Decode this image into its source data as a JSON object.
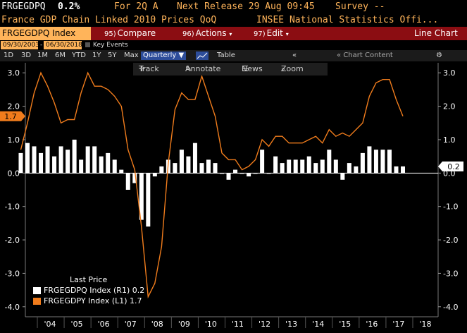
{
  "header": {
    "ticker": "FRGEGDPQ",
    "last_value": "0.2%",
    "for_label": "For 2Q A",
    "next_release": "Next Release 29 Aug 09:45",
    "survey": "Survey --",
    "description": "France GDP Chain Linked 2010 Prices QoQ",
    "source": "INSEE National Statistics Offi..."
  },
  "menu": {
    "ticker_box": "FRGEGDPQ Index",
    "compare": {
      "num": "95)",
      "label": "Compare"
    },
    "actions": {
      "num": "96)",
      "label": "Actions"
    },
    "edit": {
      "num": "97)",
      "label": "Edit"
    },
    "chart_type": "Line Chart"
  },
  "dates": {
    "start": "09/30/2003",
    "end": "06/30/2018",
    "key_events": "Key Events"
  },
  "periods": [
    "1D",
    "3D",
    "1M",
    "6M",
    "YTD",
    "1Y",
    "5Y",
    "Max"
  ],
  "frequency": "Quarterly",
  "table_label": "Table",
  "chart_content": "Chart Content",
  "tools": {
    "track": "Track",
    "annotate": "Annotate",
    "news": "News",
    "zoom": "Zoom"
  },
  "legend": {
    "title": "Last Price",
    "items": [
      {
        "label": "FRGEGDPQ Index  (R1) 0.2",
        "color": "#ffffff"
      },
      {
        "label": "FRGEGDPY Index  (L1) 1.7",
        "color": "#f07c1c"
      }
    ]
  },
  "colors": {
    "accent": "#ffb45a",
    "menubar": "#8b0d12",
    "line": "#f07c1c",
    "bar": "#ffffff"
  },
  "chart_data": {
    "type": "bar",
    "x_tick_labels": [
      "'04",
      "'05",
      "'06",
      "'07",
      "'08",
      "'09",
      "'10",
      "'11",
      "'12",
      "'13",
      "'14",
      "'15",
      "'16",
      "'17",
      "'18"
    ],
    "x_start_year": 2003.75,
    "left_axis": {
      "ticks": [
        3.0,
        2.0,
        1.0,
        0.0,
        -1.0,
        -2.0,
        -3.0,
        -4.0
      ],
      "last_label": "1.7"
    },
    "right_axis": {
      "ticks": [
        3.0,
        2.0,
        1.0,
        0.0,
        -1.0,
        -2.0,
        -3.0,
        -4.0
      ],
      "last_label": "0.2"
    },
    "ylim": [
      -4.3,
      3.3
    ],
    "series": [
      {
        "name": "FRGEGDPQ Index",
        "type": "bar",
        "axis": "R1",
        "values": [
          0.6,
          0.9,
          0.8,
          0.6,
          0.8,
          0.5,
          0.8,
          0.7,
          1.0,
          0.4,
          0.8,
          0.8,
          0.5,
          0.6,
          0.4,
          0.1,
          -0.5,
          -0.3,
          -1.4,
          -1.6,
          -0.1,
          0.2,
          0.4,
          0.3,
          0.7,
          0.5,
          0.9,
          0.3,
          0.4,
          0.3,
          0.0,
          -0.2,
          0.1,
          0.0,
          -0.1,
          0.0,
          0.7,
          0.0,
          0.5,
          0.3,
          0.4,
          0.4,
          0.4,
          0.5,
          0.3,
          0.4,
          0.7,
          0.4,
          -0.2,
          0.3,
          0.2,
          0.6,
          0.8,
          0.7,
          0.7,
          0.7,
          0.2,
          0.2
        ]
      },
      {
        "name": "FRGEGDPY Index",
        "type": "line",
        "axis": "L1",
        "values": [
          0.7,
          1.5,
          2.4,
          3.0,
          2.6,
          2.1,
          1.5,
          1.6,
          1.6,
          2.4,
          3.0,
          2.6,
          2.6,
          2.5,
          2.3,
          2.0,
          0.7,
          0.1,
          -1.6,
          -3.7,
          -3.3,
          -2.2,
          0.3,
          1.9,
          2.4,
          2.2,
          2.2,
          2.9,
          2.3,
          1.7,
          0.6,
          0.4,
          0.4,
          0.1,
          0.2,
          0.4,
          1.0,
          0.8,
          1.1,
          1.1,
          0.9,
          0.9,
          0.9,
          1.0,
          1.1,
          0.9,
          1.3,
          1.1,
          1.2,
          1.1,
          1.3,
          1.5,
          2.3,
          2.7,
          2.8,
          2.8,
          2.2,
          1.7
        ]
      }
    ]
  }
}
